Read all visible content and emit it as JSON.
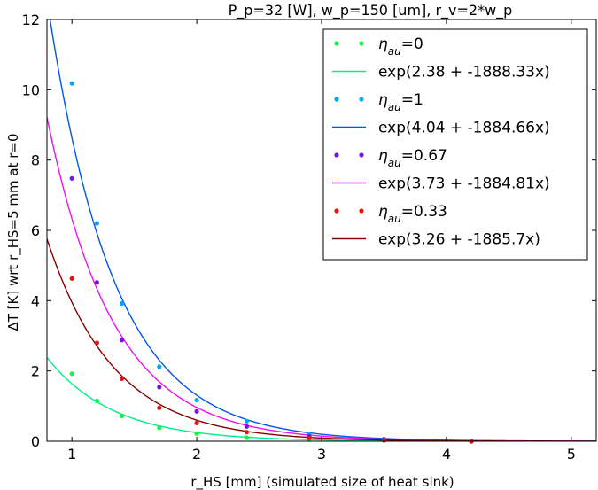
{
  "chart_data": {
    "type": "scatter",
    "title": "P_p=32 [W], w_p=150 [um], r_v=2*w_p",
    "xlabel": "r_HS [mm] (simulated size of heat sink)",
    "ylabel": "ΔT [K] wrt r_HS=5 mm at r=0",
    "xlim": [
      0.8,
      5.2
    ],
    "ylim": [
      0,
      12
    ],
    "xticks": [
      1,
      2,
      3,
      4,
      5
    ],
    "yticks": [
      0,
      2,
      4,
      6,
      8,
      10,
      12
    ],
    "grid": false,
    "legend_position": "top-right",
    "x": [
      1.0,
      1.2,
      1.4,
      1.7,
      2.0,
      2.4,
      2.9,
      3.5,
      4.2
    ],
    "series": [
      {
        "kind": "points",
        "name": "η_au=0",
        "color": "#00ff44",
        "values": [
          1.92,
          1.15,
          0.72,
          0.38,
          0.22,
          0.1,
          0.05,
          0.02,
          0.0
        ]
      },
      {
        "kind": "fit",
        "name": "exp(2.38 + -1888.33x)",
        "color": "#00ee88",
        "a": 2.38,
        "b": -1888.33
      },
      {
        "kind": "points",
        "name": "η_au=1",
        "color": "#00a8f0",
        "values": [
          10.18,
          6.2,
          3.92,
          2.12,
          1.17,
          0.57,
          0.2,
          0.06,
          0.0
        ]
      },
      {
        "kind": "fit",
        "name": "exp(4.04 + -1884.66x)",
        "color": "#0055ee",
        "a": 4.04,
        "b": -1884.66
      },
      {
        "kind": "points",
        "name": "η_au=0.67",
        "color": "#7711ee",
        "values": [
          7.48,
          4.52,
          2.88,
          1.54,
          0.85,
          0.42,
          0.14,
          0.05,
          0.0
        ]
      },
      {
        "kind": "fit",
        "name": "exp(3.73 + -1884.81x)",
        "color": "#ee11ee",
        "a": 3.73,
        "b": -1884.81
      },
      {
        "kind": "points",
        "name": "η_au=0.33",
        "color": "#ee1111",
        "values": [
          4.63,
          2.8,
          1.78,
          0.95,
          0.52,
          0.26,
          0.09,
          0.03,
          0.0
        ]
      },
      {
        "kind": "fit",
        "name": "exp(3.26 + -1885.7x)",
        "color": "#880000",
        "a": 3.26,
        "b": -1885.7
      }
    ]
  }
}
